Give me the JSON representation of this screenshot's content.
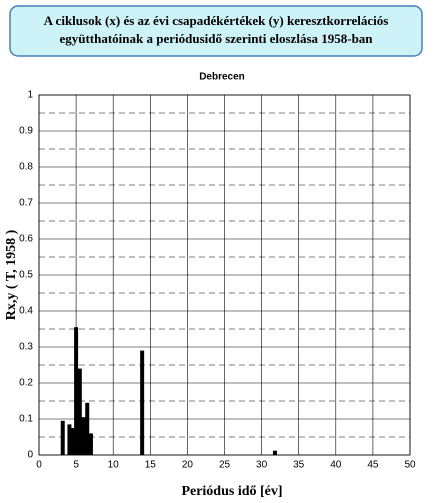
{
  "chart_data": {
    "type": "bar",
    "title": [
      "A ciklusok (x) és az évi csapadékértékek (y) keresztkorrelációs",
      "együtthatóinak a periódusidő szerinti eloszlása 1958-ban"
    ],
    "subtitle": "Debrecen",
    "x_label": "Periódus idő [év]",
    "y_label": "Rx,y ( T, 1958 )",
    "x": [
      3.2,
      4.1,
      4.5,
      5.0,
      5.5,
      6.0,
      6.5,
      7.0,
      13.9,
      31.8
    ],
    "values": [
      0.095,
      0.085,
      0.075,
      0.355,
      0.24,
      0.105,
      0.145,
      0.06,
      0.29,
      0.012
    ],
    "color": "#000000",
    "xlim": [
      0,
      50
    ],
    "xticks": [
      0,
      5,
      10,
      15,
      20,
      25,
      30,
      35,
      40,
      45,
      50
    ],
    "ylim": [
      0,
      1
    ],
    "yticks": [
      0,
      0.1,
      0.2,
      0.3,
      0.4,
      0.5,
      0.6,
      0.7,
      0.8,
      0.9,
      1
    ],
    "grid": true
  }
}
